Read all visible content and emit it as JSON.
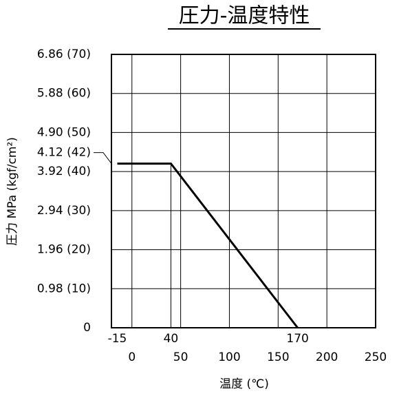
{
  "chart_data": {
    "type": "line",
    "title": "圧力-温度特性",
    "x_label": "温度 (℃)",
    "y_label": "圧力 MPa (kgf/cm²)",
    "series": [
      {
        "x": [
          -15,
          40,
          170
        ],
        "values": [
          4.12,
          4.12,
          0
        ],
        "color": "#000000"
      }
    ],
    "xlim": [
      -21,
      250
    ],
    "xticks": [
      0,
      50,
      100,
      150,
      200,
      250
    ],
    "xticks_secondary": [
      -15,
      40,
      170
    ],
    "ylim": [
      0,
      6.86
    ],
    "yticks": [
      0,
      {
        "value": 0.98,
        "label": "0.98 (10)"
      },
      {
        "value": 1.96,
        "label": "1.96 (20)"
      },
      {
        "value": 2.94,
        "label": "2.94 (30)"
      },
      {
        "value": 3.92,
        "label": "3.92 (40)"
      },
      {
        "value": 4.12,
        "label": "4.12 (42)"
      },
      {
        "value": 4.9,
        "label": "4.90 (50)"
      },
      {
        "value": 5.88,
        "label": "5.88 (60)"
      },
      {
        "value": 6.86,
        "label": "6.86 (70)"
      }
    ],
    "grid": true
  }
}
